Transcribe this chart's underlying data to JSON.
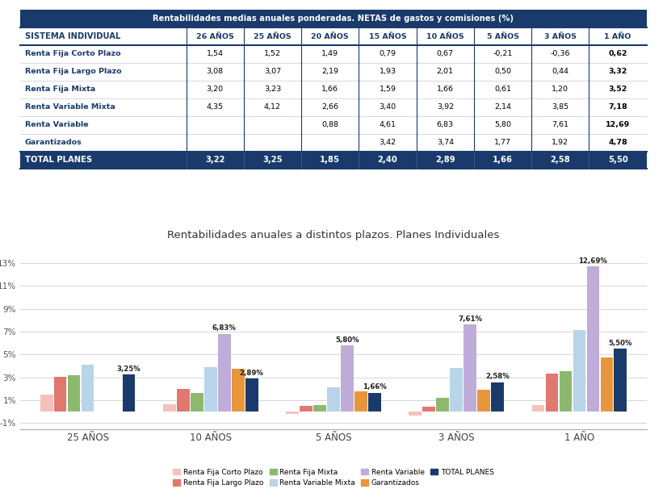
{
  "table_title": "Rentabilidades medias anuales ponderadas. NETAS de gastos y comisiones (%)",
  "table_header_bg": "#1a3a6b",
  "table_header_fg": "#ffffff",
  "table_col_header_fg": "#1a3a6b",
  "table_total_bg": "#1a3a6b",
  "table_total_fg": "#ffffff",
  "col_headers": [
    "SISTEMA INDIVIDUAL",
    "26 AÑOS",
    "25 AÑOS",
    "20 AÑOS",
    "15 AÑOS",
    "10 AÑOS",
    "5 AÑOS",
    "3 AÑOS",
    "1 AÑO"
  ],
  "rows": [
    [
      "Renta Fija Corto Plazo",
      "1,54",
      "1,52",
      "1,49",
      "0,79",
      "0,67",
      "-0,21",
      "-0,36",
      "0,62"
    ],
    [
      "Renta Fija Largo Plazo",
      "3,08",
      "3,07",
      "2,19",
      "1,93",
      "2,01",
      "0,50",
      "0,44",
      "3,32"
    ],
    [
      "Renta Fija Mixta",
      "3,20",
      "3,23",
      "1,66",
      "1,59",
      "1,66",
      "0,61",
      "1,20",
      "3,52"
    ],
    [
      "Renta Variable Mixta",
      "4,35",
      "4,12",
      "2,66",
      "3,40",
      "3,92",
      "2,14",
      "3,85",
      "7,18"
    ],
    [
      "Renta Variable",
      "",
      "",
      "0,88",
      "4,61",
      "6,83",
      "5,80",
      "7,61",
      "12,69"
    ],
    [
      "Garantizados",
      "",
      "",
      "",
      "3,42",
      "3,74",
      "1,77",
      "1,92",
      "4,78"
    ]
  ],
  "total_row": [
    "TOTAL PLANES",
    "3,22",
    "3,25",
    "1,85",
    "2,40",
    "2,89",
    "1,66",
    "2,58",
    "5,50"
  ],
  "chart_title": "Rentabilidades anuales a distintos plazos. Planes Individuales",
  "chart_groups": [
    "25 AÑOS",
    "10 AÑOS",
    "5 AÑOS",
    "3 AÑOS",
    "1 AÑO"
  ],
  "series": {
    "Renta Fija Corto Plazo": [
      1.52,
      0.67,
      -0.21,
      -0.36,
      0.62
    ],
    "Renta Fija Largo Plazo": [
      3.07,
      2.01,
      0.5,
      0.44,
      3.32
    ],
    "Renta Fija Mixta": [
      3.23,
      1.66,
      0.61,
      1.2,
      3.52
    ],
    "Renta Variable Mixta": [
      4.12,
      3.92,
      2.14,
      3.85,
      7.18
    ],
    "Renta Variable": [
      null,
      6.83,
      5.8,
      7.61,
      12.69
    ],
    "Garantizados": [
      null,
      3.74,
      1.77,
      1.92,
      4.78
    ],
    "TOTAL PLANES": [
      3.25,
      2.89,
      1.66,
      2.58,
      5.5
    ]
  },
  "series_colors": {
    "Renta Fija Corto Plazo": "#f4c2bc",
    "Renta Fija Largo Plazo": "#e07870",
    "Renta Fija Mixta": "#8db96e",
    "Renta Variable Mixta": "#b8d4e8",
    "Renta Variable": "#c0acd8",
    "Garantizados": "#e8963c",
    "TOTAL PLANES": "#1a3a6b"
  },
  "ylim": [
    -1.5,
    14.5
  ],
  "yticks": [
    -1,
    1,
    3,
    5,
    7,
    9,
    11,
    13
  ],
  "ytick_labels": [
    "-1%",
    "1%",
    "3%",
    "5%",
    "7%",
    "9%",
    "11%",
    "13%"
  ]
}
